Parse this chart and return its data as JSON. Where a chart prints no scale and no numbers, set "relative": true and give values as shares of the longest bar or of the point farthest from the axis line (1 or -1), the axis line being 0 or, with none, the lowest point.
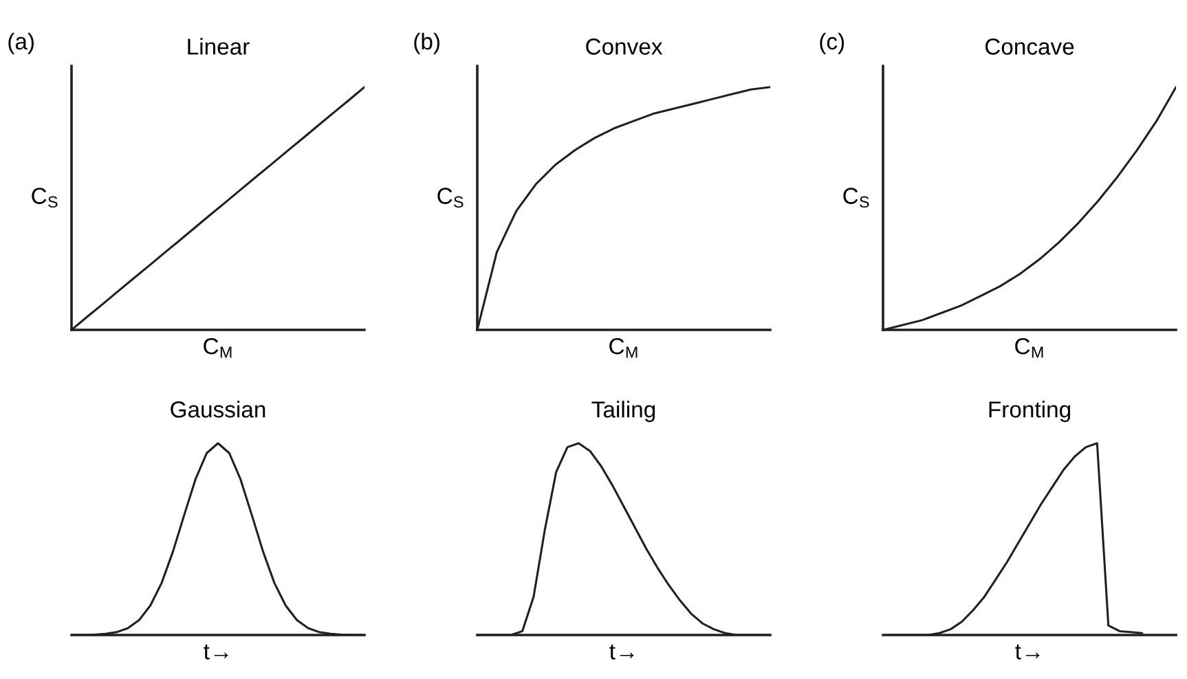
{
  "chart_data": [
    {
      "type": "line",
      "title": "Linear",
      "xlabel": "C$_{M}$",
      "ylabel": "C$_{S}$",
      "annotations": [
        "(a)"
      ],
      "relative": true,
      "categories": [
        null,
        null,
        null,
        null,
        null,
        null,
        null,
        null,
        null,
        null,
        null,
        null,
        null,
        null,
        null,
        null,
        null,
        null,
        null,
        null
      ],
      "series": [
        {
          "color": "#231f20",
          "values": [
            0,
            0.053,
            0.105,
            0.158,
            0.211,
            0.263,
            0.316,
            0.368,
            0.421,
            0.474,
            0.526,
            0.579,
            0.632,
            0.684,
            0.737,
            0.789,
            0.842,
            0.895,
            0.947,
            1
          ]
        }
      ]
    },
    {
      "type": "line",
      "title": "Convex",
      "xlabel": "C$_{M}$",
      "ylabel": "C$_{S}$",
      "annotations": [
        "(b)"
      ],
      "relative": true,
      "categories": [
        null,
        null,
        null,
        null,
        null,
        null,
        null,
        null,
        null,
        null,
        null,
        null,
        null,
        null,
        null,
        null
      ],
      "series": [
        {
          "color": "#231f20",
          "values": [
            0,
            0.32,
            0.49,
            0.6,
            0.68,
            0.74,
            0.79,
            0.83,
            0.86,
            0.89,
            0.91,
            0.93,
            0.95,
            0.97,
            0.99,
            1
          ]
        }
      ]
    },
    {
      "type": "line",
      "title": "Concave",
      "xlabel": "C$_{M}$",
      "ylabel": "C$_{S}$",
      "annotations": [
        "(c)"
      ],
      "relative": true,
      "categories": [
        null,
        null,
        null,
        null,
        null,
        null,
        null,
        null,
        null,
        null,
        null,
        null,
        null,
        null,
        null,
        null
      ],
      "series": [
        {
          "color": "#231f20",
          "values": [
            0,
            0.02,
            0.04,
            0.07,
            0.1,
            0.14,
            0.18,
            0.23,
            0.29,
            0.36,
            0.44,
            0.53,
            0.63,
            0.74,
            0.86,
            1
          ]
        }
      ]
    },
    {
      "type": "line",
      "title": "Gaussian",
      "xlabel": "t→",
      "relative": true,
      "categories": [
        null,
        null,
        null,
        null,
        null,
        null,
        null,
        null,
        null,
        null,
        null,
        null,
        null,
        null,
        null,
        null,
        null,
        null,
        null,
        null,
        null,
        null,
        null,
        null,
        null,
        null,
        null
      ],
      "series": [
        {
          "color": "#231f20",
          "values": [
            0,
            0,
            0.002,
            0.006,
            0.015,
            0.036,
            0.078,
            0.154,
            0.272,
            0.435,
            0.626,
            0.812,
            0.949,
            1,
            0.949,
            0.812,
            0.626,
            0.435,
            0.272,
            0.154,
            0.078,
            0.036,
            0.015,
            0.006,
            0.002,
            0,
            0
          ]
        }
      ]
    },
    {
      "type": "line",
      "title": "Tailing",
      "xlabel": "t→",
      "relative": true,
      "categories": [
        null,
        null,
        null,
        null,
        null,
        null,
        null,
        null,
        null,
        null,
        null,
        null,
        null,
        null,
        null,
        null,
        null,
        null,
        null,
        null,
        null,
        null,
        null,
        null,
        null,
        null,
        null
      ],
      "series": [
        {
          "color": "#231f20",
          "values": [
            0,
            0,
            0,
            0,
            0.02,
            0.2,
            0.55,
            0.85,
            0.98,
            1,
            0.96,
            0.88,
            0.78,
            0.67,
            0.56,
            0.45,
            0.35,
            0.26,
            0.18,
            0.11,
            0.06,
            0.03,
            0.01,
            0,
            0,
            0,
            0
          ]
        }
      ]
    },
    {
      "type": "line",
      "title": "Fronting",
      "xlabel": "t→",
      "relative": true,
      "categories": [
        null,
        null,
        null,
        null,
        null,
        null,
        null,
        null,
        null,
        null,
        null,
        null,
        null,
        null,
        null,
        null,
        null,
        null,
        null,
        null,
        null,
        null,
        null,
        null,
        null,
        null,
        null
      ],
      "series": [
        {
          "color": "#231f20",
          "values": [
            0,
            0,
            0,
            0,
            0,
            0.01,
            0.03,
            0.07,
            0.13,
            0.2,
            0.29,
            0.38,
            0.48,
            0.58,
            0.68,
            0.77,
            0.86,
            0.93,
            0.98,
            1,
            0.05,
            0.02,
            0.015,
            0.01,
            null,
            null,
            null
          ]
        }
      ]
    }
  ]
}
